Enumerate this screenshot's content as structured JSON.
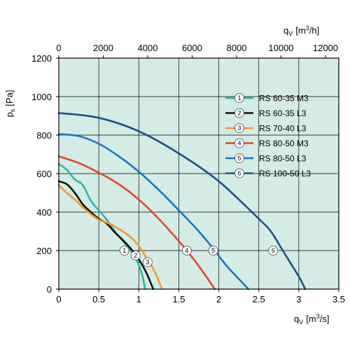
{
  "chart_data": {
    "type": "line",
    "plot_bg": "#d5ebe6",
    "grid": true,
    "x": {
      "min": 0,
      "max": 3.5,
      "ticks": [
        0,
        0.5,
        1,
        1.5,
        2,
        2.5,
        3,
        3.5
      ],
      "tick_labels": [
        "0",
        "0.5",
        "1",
        "1.5",
        "2",
        "2.5",
        "3",
        "3.5"
      ],
      "label": "q",
      "label_sub": "V",
      "label_unit_pre": "[m",
      "label_unit_sup": "3",
      "label_unit_post": "/s]"
    },
    "x_top": {
      "min": 0,
      "max": 12600,
      "ticks": [
        0,
        2000,
        4000,
        6000,
        8000,
        10000,
        12000
      ],
      "tick_labels": [
        "0",
        "2000",
        "4000",
        "6000",
        "8000",
        "10000",
        "12000"
      ],
      "label": "q",
      "label_sub": "V",
      "label_unit_pre": "[m",
      "label_unit_sup": "3",
      "label_unit_post": "/h]"
    },
    "y": {
      "min": 0,
      "max": 1200,
      "ticks": [
        0,
        200,
        400,
        600,
        800,
        1000,
        1200
      ],
      "tick_labels": [
        "0",
        "200",
        "400",
        "600",
        "800",
        "1000",
        "1200"
      ],
      "label": "p",
      "label_sub": "s",
      "label_unit": "[Pa]"
    },
    "legend_position": "top-right",
    "series": [
      {
        "id": "1",
        "name": "RS 60-35 M3",
        "color": "#2fb5a2",
        "points": [
          [
            0,
            650
          ],
          [
            0.1,
            620
          ],
          [
            0.2,
            570
          ],
          [
            0.3,
            540
          ],
          [
            0.4,
            460
          ],
          [
            0.5,
            410
          ],
          [
            0.6,
            360
          ],
          [
            0.7,
            300
          ],
          [
            0.8,
            250
          ],
          [
            0.9,
            200
          ],
          [
            1.0,
            125
          ],
          [
            1.05,
            60
          ],
          [
            1.08,
            0
          ]
        ],
        "marker": [
          0.82,
          200
        ]
      },
      {
        "id": "2",
        "name": "RS 60-35 L3",
        "color": "#111111",
        "points": [
          [
            0,
            560
          ],
          [
            0.1,
            545
          ],
          [
            0.2,
            500
          ],
          [
            0.3,
            440
          ],
          [
            0.4,
            400
          ],
          [
            0.5,
            365
          ],
          [
            0.6,
            340
          ],
          [
            0.7,
            295
          ],
          [
            0.8,
            255
          ],
          [
            0.9,
            210
          ],
          [
            1.0,
            155
          ],
          [
            1.1,
            80
          ],
          [
            1.18,
            0
          ]
        ],
        "marker": [
          0.96,
          175
        ]
      },
      {
        "id": "3",
        "name": "RS 70-40 L3",
        "color": "#f39a2e",
        "points": [
          [
            0,
            540
          ],
          [
            0.1,
            500
          ],
          [
            0.2,
            465
          ],
          [
            0.3,
            425
          ],
          [
            0.4,
            390
          ],
          [
            0.5,
            360
          ],
          [
            0.6,
            345
          ],
          [
            0.7,
            325
          ],
          [
            0.8,
            300
          ],
          [
            0.9,
            270
          ],
          [
            1.0,
            225
          ],
          [
            1.1,
            160
          ],
          [
            1.2,
            90
          ],
          [
            1.29,
            0
          ]
        ],
        "marker": [
          1.11,
          140
        ]
      },
      {
        "id": "4",
        "name": "RS 80-50 M3",
        "color": "#e4452a",
        "points": [
          [
            0,
            690
          ],
          [
            0.25,
            655
          ],
          [
            0.5,
            605
          ],
          [
            0.75,
            545
          ],
          [
            1.0,
            465
          ],
          [
            1.25,
            365
          ],
          [
            1.5,
            250
          ],
          [
            1.6,
            200
          ],
          [
            1.75,
            120
          ],
          [
            1.95,
            0
          ]
        ],
        "marker": [
          1.6,
          200
        ]
      },
      {
        "id": "5",
        "name": "RS 80-50 L3",
        "color": "#1b76c4",
        "points": [
          [
            0,
            805
          ],
          [
            0.25,
            795
          ],
          [
            0.5,
            755
          ],
          [
            0.75,
            690
          ],
          [
            1.0,
            610
          ],
          [
            1.25,
            515
          ],
          [
            1.5,
            410
          ],
          [
            1.75,
            300
          ],
          [
            1.95,
            200
          ],
          [
            2.1,
            120
          ],
          [
            2.37,
            0
          ]
        ],
        "marker": [
          1.93,
          200
        ]
      },
      {
        "id": "6",
        "name": "RS 100-50 L3",
        "color": "#1f4f8c",
        "points": [
          [
            0,
            915
          ],
          [
            0.5,
            890
          ],
          [
            1.0,
            820
          ],
          [
            1.5,
            705
          ],
          [
            2.0,
            560
          ],
          [
            2.5,
            365
          ],
          [
            2.65,
            300
          ],
          [
            2.8,
            200
          ],
          [
            3.0,
            65
          ],
          [
            3.08,
            0
          ]
        ],
        "marker": [
          2.68,
          200
        ]
      }
    ]
  }
}
